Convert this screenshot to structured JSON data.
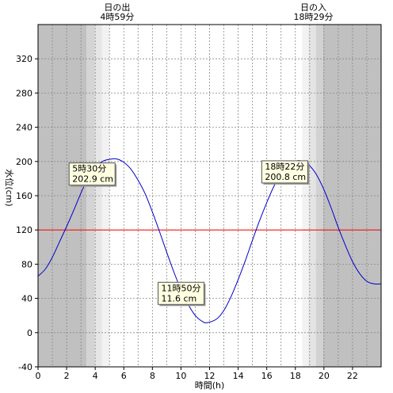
{
  "chart_data": {
    "type": "line",
    "xlabel": "時間(h)",
    "ylabel": "水位(cm)",
    "xlim": [
      0,
      24
    ],
    "ylim": [
      -40,
      360
    ],
    "x_ticks": [
      0,
      2,
      4,
      6,
      8,
      10,
      12,
      14,
      16,
      18,
      20,
      22
    ],
    "y_ticks": [
      -40,
      0,
      40,
      80,
      120,
      160,
      200,
      240,
      280,
      320
    ],
    "grid": true,
    "reference_line": {
      "y": 120,
      "color": "#ff0000"
    },
    "line_color": "#0000cc",
    "series": [
      {
        "x": [
          0,
          0.5,
          1,
          1.5,
          2,
          2.5,
          3,
          3.5,
          4,
          4.5,
          5,
          5.5,
          6,
          6.5,
          7,
          7.5,
          8,
          8.5,
          9,
          9.5,
          10,
          10.5,
          11,
          11.5,
          11.83,
          12.5,
          13,
          13.5,
          14,
          14.5,
          15,
          15.5,
          16,
          16.5,
          17,
          17.5,
          18,
          18.37,
          19,
          19.5,
          20,
          20.5,
          21,
          21.5,
          22,
          22.5,
          23,
          23.5,
          24
        ],
        "y": [
          66,
          74,
          88,
          106,
          124,
          143,
          163,
          181,
          193,
          200,
          202.5,
          202.9,
          199,
          191,
          178,
          162,
          141,
          118,
          94,
          71,
          50,
          33,
          20,
          13,
          11.6,
          16,
          26,
          42,
          62,
          84,
          108,
          131,
          152,
          171,
          186,
          196,
          200,
          200.8,
          195,
          184,
          167,
          146,
          123,
          102,
          83,
          69,
          60,
          57,
          57
        ]
      }
    ],
    "sun": {
      "rise_label": "日の出",
      "rise_time": "4時59分",
      "rise_hour": 4.983,
      "set_label": "日の入",
      "set_time": "18時29分",
      "set_hour": 18.483
    },
    "annotations": [
      {
        "time": "5時30分",
        "value": "202.9 cm",
        "x": 5.5,
        "y": 202.9
      },
      {
        "time": "11時50分",
        "value": "11.6 cm",
        "x": 11.833,
        "y": 11.6
      },
      {
        "time": "18時22分",
        "value": "200.8 cm",
        "x": 18.367,
        "y": 200.8
      }
    ]
  }
}
